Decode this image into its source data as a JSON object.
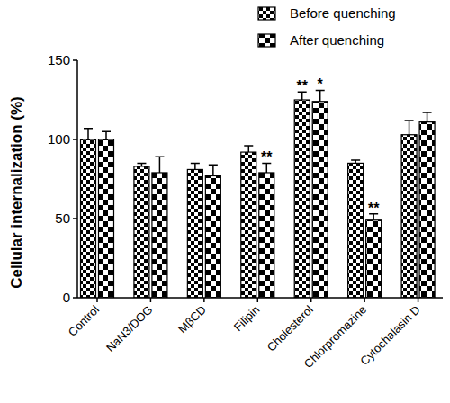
{
  "chart_data": {
    "type": "bar",
    "y_label": "Cellular internalization (%)",
    "categories": [
      "Control",
      "NaN3/DOG",
      "MβCD",
      "Filipin",
      "Cholesterol",
      "Chlorpromazine",
      "Cytochalasin D"
    ],
    "series": [
      {
        "name": "Before quenching",
        "color": "#000000",
        "values": [
          100,
          83,
          81,
          92,
          125,
          85,
          103
        ],
        "errors": [
          7,
          2,
          4,
          4,
          5,
          2,
          9
        ],
        "significance": [
          null,
          null,
          null,
          null,
          "**",
          null,
          null
        ]
      },
      {
        "name": "After quenching",
        "color": "#000000",
        "values": [
          100,
          79,
          77,
          79,
          124,
          49,
          111
        ],
        "errors": [
          5,
          10,
          7,
          6,
          7,
          4,
          6
        ],
        "significance": [
          null,
          null,
          null,
          "**",
          "*",
          "**",
          null
        ]
      }
    ],
    "ylim": [
      0,
      150
    ],
    "yticks": [
      0,
      50,
      100,
      150
    ],
    "grid": false,
    "legend": "top-right"
  }
}
